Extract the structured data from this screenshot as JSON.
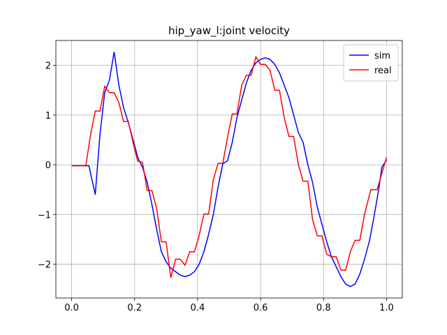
{
  "chart_data": {
    "type": "line",
    "title": "hip_yaw_l:joint velocity",
    "xlim": [
      -0.05,
      1.05
    ],
    "ylim": [
      -2.68,
      2.5
    ],
    "xticks": [
      {
        "value": 0,
        "label": "0.0"
      },
      {
        "value": 0.2,
        "label": "0.2"
      },
      {
        "value": 0.4,
        "label": "0.4"
      },
      {
        "value": 0.6,
        "label": "0.6"
      },
      {
        "value": 0.8,
        "label": "0.8"
      },
      {
        "value": 1,
        "label": "1.0"
      }
    ],
    "yticks": [
      {
        "value": -2,
        "label": "−2"
      },
      {
        "value": -1,
        "label": "−1"
      },
      0,
      1,
      2
    ],
    "grid": true,
    "legend": "upper right",
    "series": [
      {
        "name": "sim",
        "color": "#0000ff",
        "x": [
          0,
          0.055,
          0.075,
          0.09,
          0.105,
          0.12,
          0.135,
          0.15,
          0.165,
          0.18,
          0.195,
          0.21,
          0.225,
          0.24,
          0.255,
          0.27,
          0.285,
          0.3,
          0.315,
          0.33,
          0.345,
          0.36,
          0.375,
          0.39,
          0.405,
          0.42,
          0.435,
          0.45,
          0.465,
          0.48,
          0.495,
          0.51,
          0.525,
          0.54,
          0.555,
          0.57,
          0.585,
          0.6,
          0.615,
          0.63,
          0.645,
          0.66,
          0.675,
          0.69,
          0.705,
          0.72,
          0.735,
          0.75,
          0.765,
          0.78,
          0.795,
          0.81,
          0.825,
          0.84,
          0.855,
          0.87,
          0.885,
          0.9,
          0.915,
          0.93,
          0.945,
          0.96,
          0.975,
          0.985,
          1.0
        ],
        "values": [
          -0.02,
          -0.02,
          -0.6,
          0.6,
          1.45,
          1.7,
          2.27,
          1.6,
          1.15,
          0.85,
          0.5,
          0.15,
          -0.05,
          -0.35,
          -0.8,
          -1.3,
          -1.75,
          -1.95,
          -2.08,
          -2.15,
          -2.22,
          -2.25,
          -2.22,
          -2.15,
          -2.0,
          -1.75,
          -1.4,
          -1.0,
          -0.45,
          0.02,
          0.08,
          0.45,
          0.95,
          1.3,
          1.65,
          1.9,
          2.05,
          2.12,
          2.15,
          2.12,
          2.02,
          1.85,
          1.6,
          1.35,
          1.0,
          0.65,
          0.45,
          0.0,
          -0.35,
          -0.85,
          -1.2,
          -1.55,
          -1.85,
          -2.05,
          -2.25,
          -2.4,
          -2.45,
          -2.4,
          -2.2,
          -1.9,
          -1.55,
          -1.05,
          -0.5,
          -0.05,
          0.1
        ]
      },
      {
        "name": "real",
        "color": "#ff0000",
        "x": [
          0,
          0.045,
          0.06,
          0.075,
          0.09,
          0.105,
          0.12,
          0.135,
          0.15,
          0.165,
          0.18,
          0.195,
          0.21,
          0.225,
          0.24,
          0.255,
          0.27,
          0.285,
          0.3,
          0.315,
          0.33,
          0.345,
          0.36,
          0.375,
          0.39,
          0.405,
          0.42,
          0.435,
          0.45,
          0.465,
          0.48,
          0.495,
          0.51,
          0.525,
          0.54,
          0.555,
          0.57,
          0.585,
          0.6,
          0.615,
          0.63,
          0.645,
          0.66,
          0.675,
          0.69,
          0.705,
          0.72,
          0.735,
          0.75,
          0.765,
          0.78,
          0.795,
          0.81,
          0.825,
          0.84,
          0.855,
          0.87,
          0.885,
          0.9,
          0.915,
          0.93,
          0.95,
          0.97,
          1.0
        ],
        "values": [
          -0.02,
          -0.02,
          0.6,
          1.08,
          1.08,
          1.58,
          1.45,
          1.45,
          1.25,
          0.87,
          0.87,
          0.45,
          0.07,
          0.05,
          -0.52,
          -0.52,
          -0.88,
          -1.55,
          -1.55,
          -2.27,
          -1.9,
          -1.9,
          -2.02,
          -1.75,
          -1.75,
          -1.42,
          -0.99,
          -0.99,
          -0.3,
          0.03,
          0.03,
          0.55,
          1.02,
          1.02,
          1.6,
          1.8,
          1.8,
          2.17,
          2.02,
          2.02,
          1.9,
          1.5,
          1.5,
          0.95,
          0.57,
          0.57,
          0.0,
          -0.33,
          -0.33,
          -1.1,
          -1.43,
          -1.43,
          -1.8,
          -1.85,
          -1.85,
          -2.12,
          -2.12,
          -1.75,
          -1.52,
          -1.52,
          -1.0,
          -0.5,
          -0.5,
          0.15
        ]
      }
    ]
  }
}
